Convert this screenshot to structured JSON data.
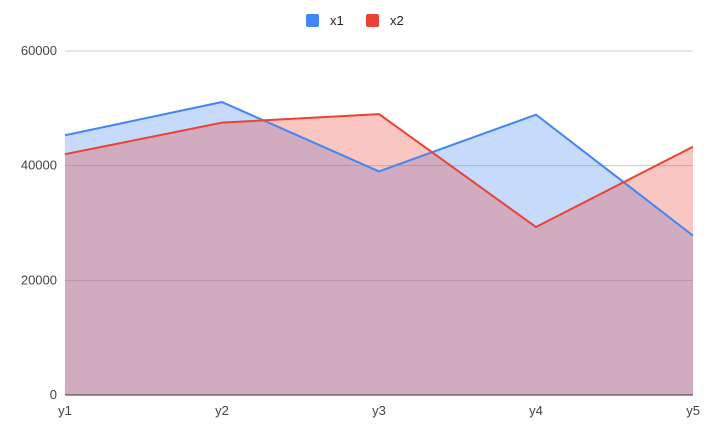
{
  "chart_data": {
    "type": "area",
    "categories": [
      "y1",
      "y2",
      "y3",
      "y4",
      "y5"
    ],
    "series": [
      {
        "name": "x1",
        "color": "#4285f4",
        "values": [
          45300,
          51100,
          39000,
          48900,
          27800
        ]
      },
      {
        "name": "x2",
        "color": "#ea4335",
        "values": [
          42000,
          47500,
          49000,
          29300,
          43300
        ]
      }
    ],
    "yticks": [
      "0",
      "20000",
      "40000",
      "60000"
    ],
    "ylim": [
      0,
      60000
    ],
    "grid": true,
    "legend_position": "top-center",
    "title": "",
    "xlabel": "",
    "ylabel": ""
  }
}
